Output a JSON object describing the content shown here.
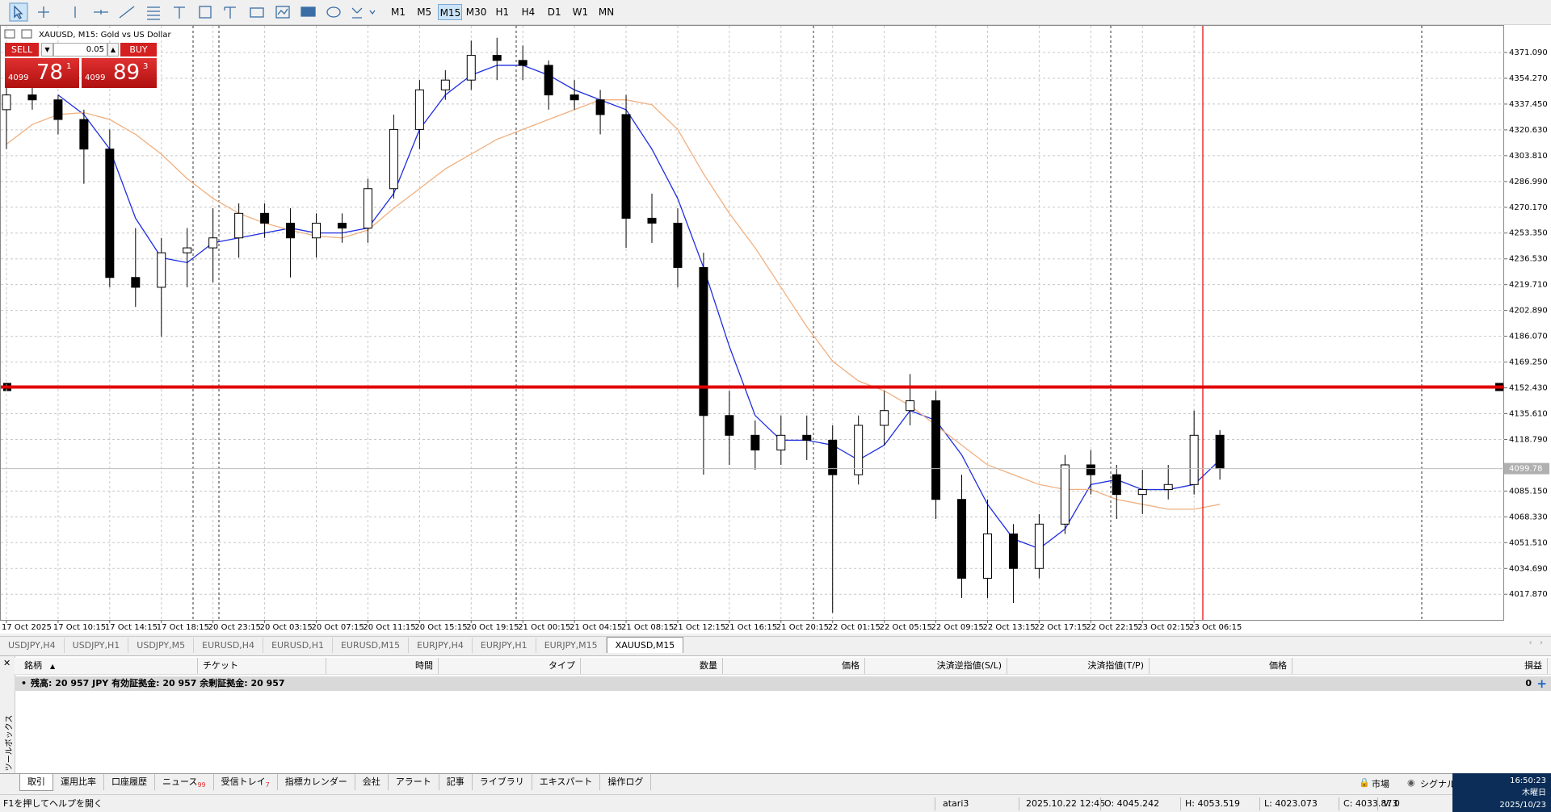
{
  "toolbar": {
    "timeframes": [
      "M1",
      "M5",
      "M15",
      "M30",
      "H1",
      "H4",
      "D1",
      "W1",
      "MN"
    ],
    "active_timeframe": "M15"
  },
  "chart_data": {
    "type": "candlestick",
    "title": "XAUUSD, M15:  Gold vs US Dollar",
    "categories": [
      "17 Oct 2025",
      null,
      "17 Oct 10:15",
      null,
      "17 Oct 14:15",
      null,
      "17 Oct 18:15",
      null,
      "20 Oct 23:15",
      null,
      "20 Oct 03:15",
      null,
      "20 Oct 07:15",
      null,
      "20 Oct 11:15",
      null,
      "20 Oct 15:15",
      null,
      "20 Oct 19:15",
      null,
      "21 Oct 00:15",
      null,
      "21 Oct 04:15",
      null,
      "21 Oct 08:15",
      null,
      "21 Oct 12:15",
      null,
      "21 Oct 16:15",
      null,
      "21 Oct 20:15",
      null,
      "22 Oct 01:15",
      null,
      "22 Oct 05:15",
      null,
      "22 Oct 09:15",
      null,
      "22 Oct 13:15",
      null,
      "22 Oct 17:15",
      null,
      "22 Oct 22:15",
      null,
      "23 Oct 02:15",
      null,
      "23 Oct 06:15",
      null
    ],
    "open": [
      4333.8,
      4343.4,
      4340.2,
      4327.4,
      4308.1,
      4224.4,
      4218.0,
      4240.5,
      4243.7,
      4250.2,
      4266.2,
      4259.8,
      4250.2,
      4259.8,
      4256.6,
      4282.3,
      4320.9,
      4346.7,
      4353.1,
      4369.2,
      4365.9,
      4362.7,
      4343.4,
      4340.2,
      4330.6,
      4263.0,
      4259.8,
      4230.9,
      4134.4,
      4121.5,
      4111.9,
      4121.5,
      4118.3,
      4095.8,
      4128.0,
      4137.6,
      4144.0,
      4079.7,
      4028.3,
      4057.2,
      4034.7,
      4063.6,
      4102.2,
      4095.8,
      4082.9,
      4086.1,
      4089.4,
      4121.5
    ],
    "high": [
      4353.1,
      4349.9,
      4343.4,
      4333.8,
      4320.9,
      4256.6,
      4250.2,
      4256.6,
      4269.5,
      4272.7,
      4272.7,
      4269.5,
      4266.2,
      4266.2,
      4288.8,
      4330.6,
      4353.1,
      4359.5,
      4378.8,
      4380.7,
      4375.6,
      4365.9,
      4353.1,
      4346.7,
      4343.4,
      4279.1,
      4269.5,
      4240.5,
      4150.5,
      4131.2,
      4134.4,
      4134.4,
      4128.0,
      4134.4,
      4150.5,
      4161.4,
      4150.5,
      4095.8,
      4079.7,
      4063.6,
      4070.1,
      4108.7,
      4111.9,
      4102.2,
      4099.0,
      4102.2,
      4137.6,
      4124.8
    ],
    "low": [
      4308.1,
      4333.8,
      4317.7,
      4285.5,
      4218.0,
      4205.2,
      4185.9,
      4218.0,
      4221.2,
      4237.3,
      4250.2,
      4224.4,
      4237.3,
      4247.0,
      4247.0,
      4275.9,
      4308.1,
      4340.2,
      4346.7,
      4353.1,
      4353.1,
      4333.8,
      4333.8,
      4317.7,
      4243.7,
      4247.0,
      4218.0,
      4095.8,
      4102.2,
      4099.0,
      4102.2,
      4105.4,
      4005.8,
      4089.4,
      4115.1,
      4128.0,
      4066.9,
      4015.4,
      4015.4,
      4012.2,
      4028.3,
      4057.2,
      4082.9,
      4066.9,
      4070.1,
      4079.7,
      4082.9,
      4092.6
    ],
    "close": [
      4343.4,
      4340.2,
      4327.4,
      4308.1,
      4224.4,
      4218.0,
      4240.5,
      4243.7,
      4250.2,
      4266.2,
      4259.8,
      4250.2,
      4259.8,
      4256.6,
      4282.3,
      4320.9,
      4346.7,
      4353.1,
      4369.2,
      4365.9,
      4362.7,
      4343.4,
      4340.2,
      4330.6,
      4263.0,
      4259.8,
      4230.9,
      4134.4,
      4121.5,
      4111.9,
      4121.5,
      4118.3,
      4095.8,
      4128.0,
      4137.6,
      4144.0,
      4079.7,
      4028.3,
      4057.2,
      4034.7,
      4063.6,
      4102.2,
      4095.8,
      4082.9,
      4086.1,
      4089.4,
      4121.5,
      4099.8
    ],
    "bull_color": "#ffffff",
    "bear_color": "#000000",
    "candle_outline": "#000000",
    "moving_averages": [
      {
        "color": "#1f2fe0",
        "values": [
          null,
          null,
          4343.4,
          4330.6,
          4308.1,
          4263.0,
          4237.3,
          4234.1,
          4247.0,
          4250.2,
          4253.4,
          4256.6,
          4253.4,
          4253.4,
          4256.6,
          4279.1,
          4320.9,
          4343.4,
          4356.3,
          4362.7,
          4362.7,
          4356.3,
          4346.7,
          4340.2,
          4333.8,
          4308.1,
          4275.9,
          4230.9,
          4179.4,
          4134.4,
          4118.3,
          4118.3,
          4115.1,
          4105.4,
          4115.1,
          4137.6,
          4131.2,
          4108.7,
          4076.5,
          4054.0,
          4047.6,
          4060.4,
          4089.4,
          4092.6,
          4086.1,
          4086.1,
          4089.4,
          4105.4
        ]
      },
      {
        "color": "#f0b080",
        "values": [
          4311.3,
          4324.1,
          4330.6,
          4331.9,
          4327.4,
          4317.7,
          4304.8,
          4288.8,
          4275.9,
          4266.2,
          4259.8,
          4255.3,
          4251.4,
          4250.2,
          4255.3,
          4269.5,
          4282.3,
          4295.2,
          4304.8,
          4314.5,
          4320.9,
          4327.4,
          4333.8,
          4340.2,
          4340.2,
          4337.0,
          4320.9,
          4292.0,
          4266.2,
          4243.7,
          4218.0,
          4192.3,
          4169.8,
          4156.9,
          4150.5,
          4140.8,
          4128.0,
          4115.1,
          4102.2,
          4095.8,
          4089.4,
          4086.2,
          4086.2,
          4079.7,
          4076.5,
          4073.3,
          4073.3,
          4076.5
        ]
      }
    ],
    "ylim": [
      4001.15,
      4388.46
    ],
    "yticks": [
      {
        "value": 4371.09,
        "label": "4371.090"
      },
      {
        "value": 4354.27,
        "label": "4354.270"
      },
      {
        "value": 4337.45,
        "label": "4337.450"
      },
      {
        "value": 4320.63,
        "label": "4320.630"
      },
      {
        "value": 4303.81,
        "label": "4303.810"
      },
      {
        "value": 4286.99,
        "label": "4286.990"
      },
      {
        "value": 4270.17,
        "label": "4270.170"
      },
      {
        "value": 4253.35,
        "label": "4253.350"
      },
      {
        "value": 4236.53,
        "label": "4236.530"
      },
      {
        "value": 4219.71,
        "label": "4219.710"
      },
      {
        "value": 4202.89,
        "label": "4202.890"
      },
      {
        "value": 4186.07,
        "label": "4186.070"
      },
      {
        "value": 4169.25,
        "label": "4169.250"
      },
      {
        "value": 4152.43,
        "label": "4152.430"
      },
      {
        "value": 4135.61,
        "label": "4135.610"
      },
      {
        "value": 4118.79,
        "label": "4118.790"
      },
      {
        "value": 4085.15,
        "label": "4085.150"
      },
      {
        "value": 4068.33,
        "label": "4068.330"
      },
      {
        "value": 4051.51,
        "label": "4051.510"
      },
      {
        "value": 4034.69,
        "label": "4034.690"
      },
      {
        "value": 4017.87,
        "label": "4017.870"
      }
    ],
    "grid": true,
    "current_price": 4099.78,
    "horizontal_line": {
      "value": 4153.0,
      "color": "#e00000"
    }
  },
  "trade_panel": {
    "sell": "SELL",
    "buy": "BUY",
    "volume": "0.05",
    "bid": {
      "big": "4099",
      "mid": "78",
      "small": "1"
    },
    "ask": {
      "big": "4099",
      "mid": "89",
      "small": "3"
    }
  },
  "symbol_tabs": [
    "USDJPY,H4",
    "USDJPY,H1",
    "USDJPY,M5",
    "EURUSD,H4",
    "EURUSD,H1",
    "EURUSD,M15",
    "EURJPY,H4",
    "EURJPY,H1",
    "EURJPY,M15",
    "XAUUSD,M15"
  ],
  "active_symbol_tab": "XAUUSD,M15",
  "terminal": {
    "side_label": "ツールボックス",
    "columns": [
      "銘柄",
      "チケット",
      "時間",
      "タイプ",
      "数量",
      "価格",
      "決済逆指値(S/L)",
      "決済指値(T/P)",
      "価格",
      "損益"
    ],
    "balance": "残高: 20 957 JPY  有効証拠金: 20 957  余剰証拠金: 20 957",
    "profit": "0",
    "tabs": [
      {
        "label": "取引"
      },
      {
        "label": "運用比率"
      },
      {
        "label": "口座履歴"
      },
      {
        "label": "ニュース",
        "badge": "99"
      },
      {
        "label": "受信トレイ",
        "badge": "7"
      },
      {
        "label": "指標カレンダー"
      },
      {
        "label": "会社"
      },
      {
        "label": "アラート"
      },
      {
        "label": "記事"
      },
      {
        "label": "ライブラリ"
      },
      {
        "label": "エキスパート"
      },
      {
        "label": "操作ログ"
      }
    ],
    "active_tab": "取引",
    "market": "市場",
    "signals": "シグナル"
  },
  "clock": {
    "time": "16:50:23",
    "day": "木曜日",
    "date": "2025/10/23"
  },
  "status": {
    "help": "F1を押してヘルプを開く",
    "profile": "atari3",
    "datetime": "2025.10.22 12:45",
    "open": "O: 4045.242",
    "high": "H: 4053.519",
    "low": "L: 4023.073",
    "close": "C: 4033.873",
    "volume": "V: 0"
  }
}
